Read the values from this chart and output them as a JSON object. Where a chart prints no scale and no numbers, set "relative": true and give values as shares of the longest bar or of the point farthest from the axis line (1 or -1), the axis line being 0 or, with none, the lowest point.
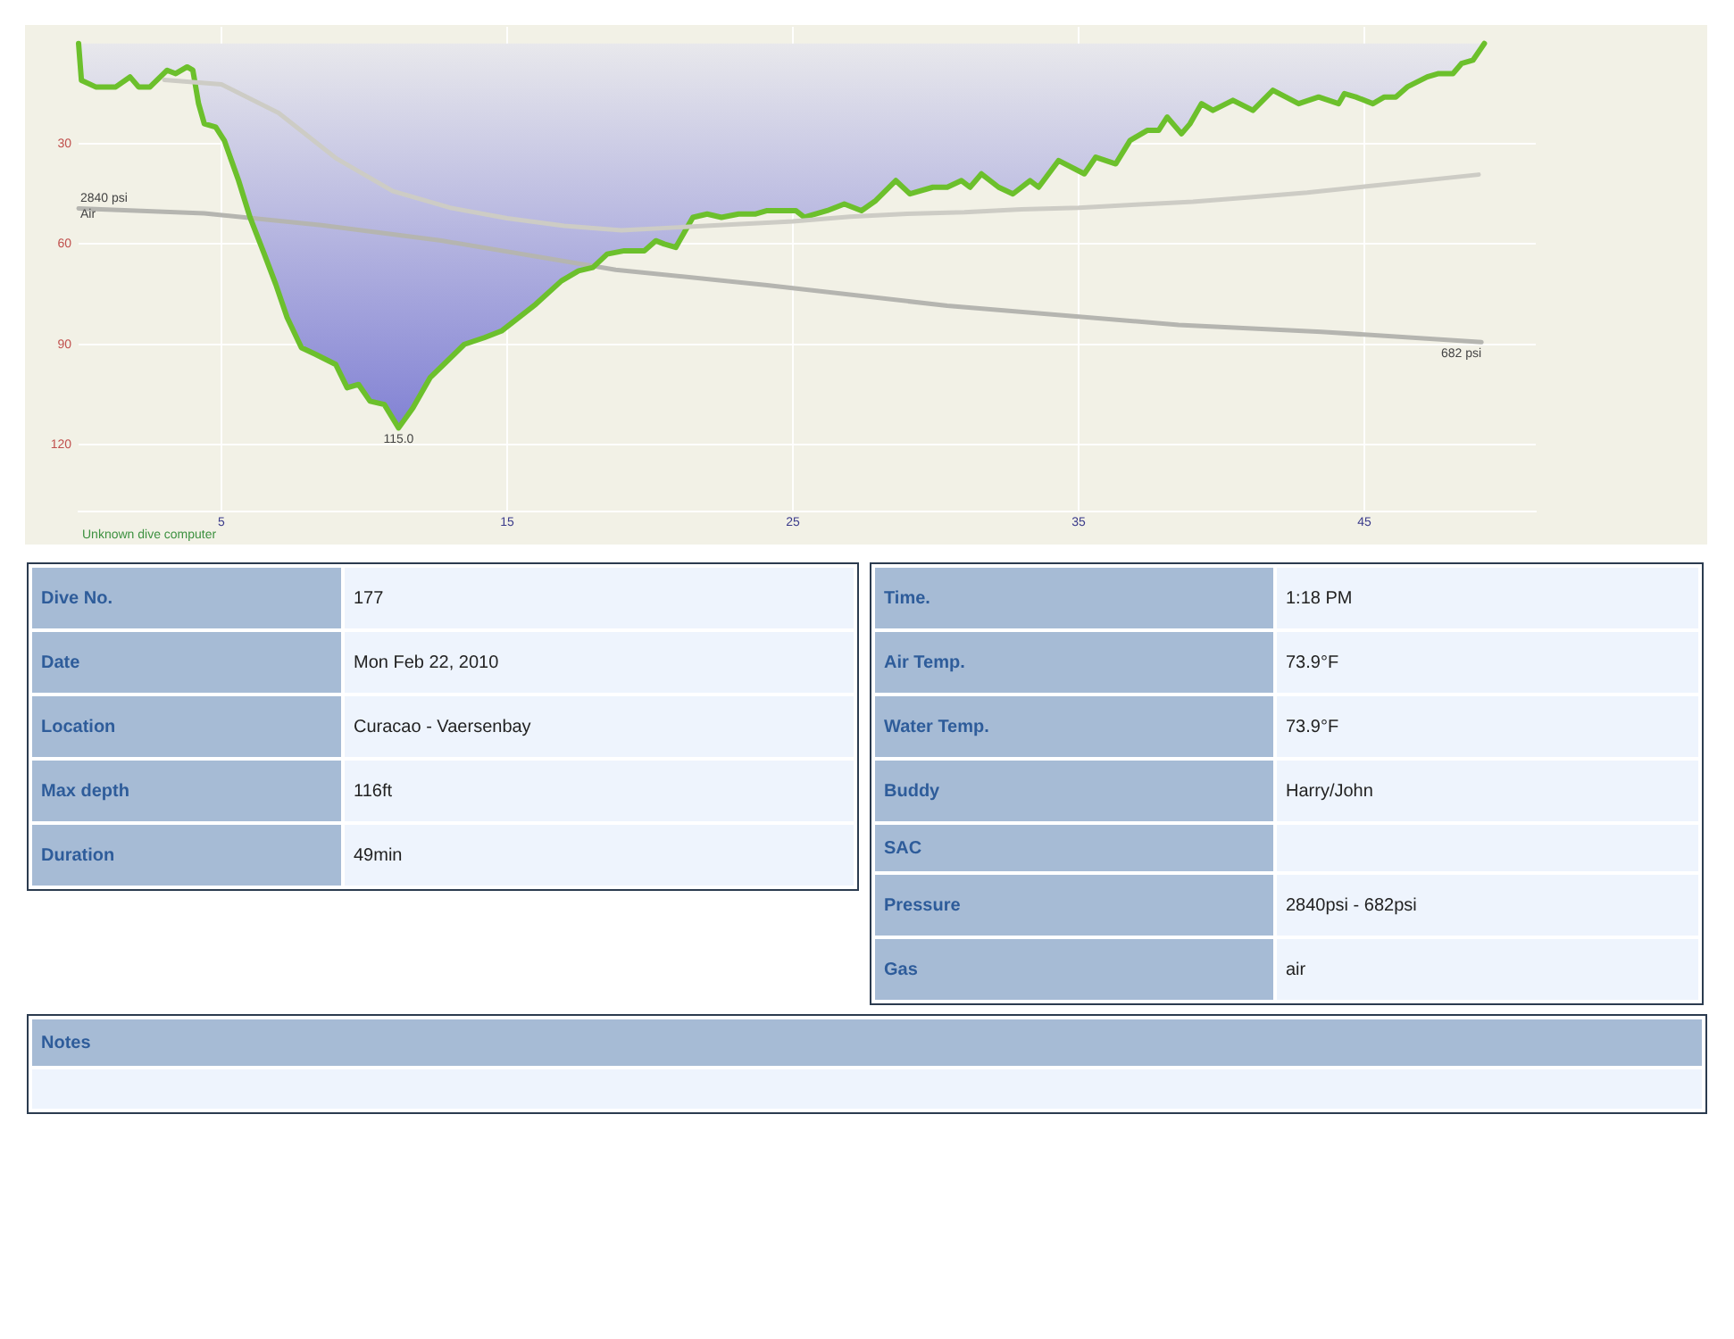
{
  "chart_data": [
    {
      "type": "area",
      "xlim": [
        0,
        51
      ],
      "xticks": [
        5,
        15,
        25,
        35,
        45
      ],
      "ylim": [
        140,
        -5
      ],
      "yticks": [
        30,
        60,
        90,
        120
      ],
      "y2lim": [
        -2050,
        5770
      ],
      "grid": true,
      "series": [
        {
          "type": "area",
          "color": "#6cc02c",
          "x": [
            0,
            0.1,
            0.6,
            1.3,
            1.8,
            2.1,
            2.5,
            3.1,
            3.4,
            3.8,
            4.0,
            4.2,
            4.4,
            4.8,
            5.1,
            5.6,
            6.0,
            6.5,
            6.9,
            7.3,
            7.8,
            8.3,
            9.0,
            9.4,
            9.8,
            10.2,
            10.7,
            11.2,
            11.7,
            12.3,
            12.9,
            13.5,
            14.2,
            14.8,
            15.4,
            16.0,
            16.9,
            17.5,
            18.0,
            18.5,
            19.1,
            19.8,
            20.2,
            20.5,
            20.9,
            21.5,
            22.0,
            22.5,
            23.1,
            23.7,
            24.1,
            25.1,
            25.4,
            26.2,
            26.8,
            27.4,
            27.9,
            28.6,
            29.1,
            29.9,
            30.4,
            30.9,
            31.2,
            31.6,
            32.2,
            32.7,
            33.3,
            33.6,
            34.3,
            35.2,
            35.6,
            36.3,
            36.8,
            37.4,
            37.8,
            38.1,
            38.6,
            38.9,
            39.3,
            39.7,
            40.4,
            41.1,
            41.8,
            42.7,
            43.4,
            44.1,
            44.3,
            44.7,
            45.3,
            45.7,
            46.1,
            46.5,
            47.2,
            47.6,
            48.1,
            48.4,
            48.8,
            49.2
          ],
          "values": [
            0,
            11,
            13,
            13,
            10,
            13,
            13,
            8,
            9,
            7,
            8,
            18,
            24,
            25,
            29,
            41,
            52,
            63,
            72,
            82,
            91,
            93,
            96,
            103,
            102,
            107,
            108,
            115,
            109,
            100,
            95,
            90,
            88,
            86,
            82,
            78,
            71,
            68,
            67,
            63,
            62,
            62,
            59,
            60,
            61,
            52,
            51,
            52,
            51,
            51,
            50,
            50,
            52,
            50,
            48,
            50,
            47,
            41,
            45,
            43,
            43,
            41,
            43,
            39,
            43,
            45,
            41,
            43,
            35,
            39,
            34,
            36,
            29,
            26,
            26,
            22,
            27,
            24,
            18,
            20,
            17,
            20,
            14,
            18,
            16,
            18,
            15,
            16,
            18,
            16,
            16,
            13,
            10,
            9,
            9,
            6,
            5,
            0
          ],
          "value_labels": [
            null,
            null,
            null,
            null,
            null,
            null,
            null,
            null,
            null,
            null,
            null,
            null,
            null,
            null,
            null,
            null,
            null,
            null,
            null,
            null,
            null,
            null,
            null,
            null,
            null,
            null,
            null,
            "115.0",
            null,
            null,
            null,
            null,
            null,
            null,
            null,
            null,
            null,
            null,
            null,
            null,
            null,
            null,
            null,
            null,
            null,
            null,
            null,
            null,
            null,
            null,
            null,
            null,
            null,
            null,
            null,
            null,
            null,
            null,
            null,
            null,
            null,
            null,
            null,
            null,
            null,
            null,
            null,
            null,
            null,
            null,
            null,
            null,
            null,
            null,
            null,
            null,
            null,
            null,
            null,
            null,
            null,
            null,
            null,
            null,
            null,
            null,
            null,
            null,
            null,
            null,
            null,
            null,
            null,
            null,
            null,
            null,
            null,
            null
          ]
        },
        {
          "type": "line",
          "axis": "y2",
          "color": "#b5b5b0",
          "x": [
            0,
            4.4,
            8.5,
            12.7,
            18.8,
            24.1,
            30.4,
            38.5,
            43.5,
            49.1
          ],
          "values": [
            2840,
            2760,
            2570,
            2320,
            1850,
            1600,
            1270,
            960,
            850,
            682
          ],
          "value_labels": [
            "2840 psi",
            null,
            null,
            null,
            null,
            null,
            null,
            null,
            null,
            "682 psi"
          ]
        }
      ],
      "annotations": [
        "Unknown dive computer",
        {
          "text": "Air",
          "x": 0,
          "y": 51
        }
      ]
    },
    {
      "type": "line",
      "relative": true,
      "tick_labels": false,
      "categories": [
        null,
        null,
        null,
        null,
        null,
        null,
        null,
        null,
        null,
        null,
        null,
        null,
        null,
        null,
        null,
        null,
        null,
        null,
        null,
        null,
        null,
        null,
        null,
        null
      ],
      "series": [
        {
          "color": "#cdccc5",
          "values": [
            1,
            0.97,
            0.78,
            0.48,
            0.26,
            0.15,
            0.08,
            0.03,
            0,
            0.02,
            0.04,
            0.06,
            0.09,
            0.11,
            0.12,
            0.14,
            0.15,
            0.17,
            0.19,
            0.22,
            0.25,
            0.29,
            0.33,
            0.37
          ]
        }
      ]
    },
    {
      "type": "other",
      "categories": [
        "Dive No.",
        "Date",
        "Location",
        "Max depth",
        "Duration"
      ],
      "value_labels": [
        "177",
        "Mon Feb 22, 2010",
        "Curacao - Vaersenbay",
        "116ft",
        "49min"
      ]
    },
    {
      "type": "other",
      "categories": [
        "Time.",
        "Air Temp.",
        "Water Temp.",
        "Buddy",
        "SAC",
        "Pressure",
        "Gas"
      ],
      "value_labels": [
        "1:18 PM",
        "73.9°F",
        "73.9°F",
        "Harry/John",
        null,
        "2840psi - 682psi",
        "air"
      ]
    },
    {
      "type": "other",
      "title": "Notes"
    }
  ]
}
